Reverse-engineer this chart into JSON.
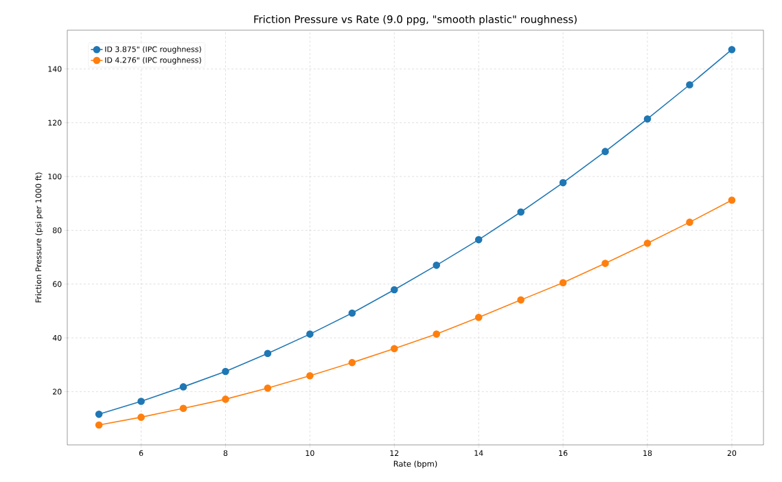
{
  "chart_data": {
    "type": "line",
    "title": "Friction Pressure vs Rate (9.0 ppg, \"smooth plastic\" roughness)",
    "xlabel": "Rate (bpm)",
    "ylabel": "Friction Pressure (psi per 1000 ft)",
    "x": [
      5,
      6,
      7,
      8,
      9,
      10,
      11,
      12,
      13,
      14,
      15,
      16,
      17,
      18,
      19,
      20
    ],
    "series": [
      {
        "name": "ID 3.875\" (IPC roughness)",
        "color": "#1f77b4",
        "values": [
          11.6,
          16.4,
          21.8,
          27.5,
          34.2,
          41.4,
          49.2,
          57.9,
          67.0,
          76.5,
          86.8,
          97.7,
          109.3,
          121.4,
          134.1,
          147.2
        ]
      },
      {
        "name": "ID 4.276\" (IPC roughness)",
        "color": "#ff7f0e",
        "values": [
          7.6,
          10.5,
          13.8,
          17.2,
          21.3,
          25.9,
          30.8,
          36.0,
          41.4,
          47.6,
          54.1,
          60.5,
          67.7,
          75.2,
          83.0,
          91.2
        ]
      }
    ],
    "xlim": [
      4.25,
      20.75
    ],
    "ylim": [
      0.2,
      154.4
    ],
    "xticks": [
      6,
      8,
      10,
      12,
      14,
      16,
      18,
      20
    ],
    "yticks": [
      20,
      40,
      60,
      80,
      100,
      120,
      140
    ],
    "grid": true,
    "legend": "top left",
    "marker": "circle",
    "line_style": "solid"
  }
}
